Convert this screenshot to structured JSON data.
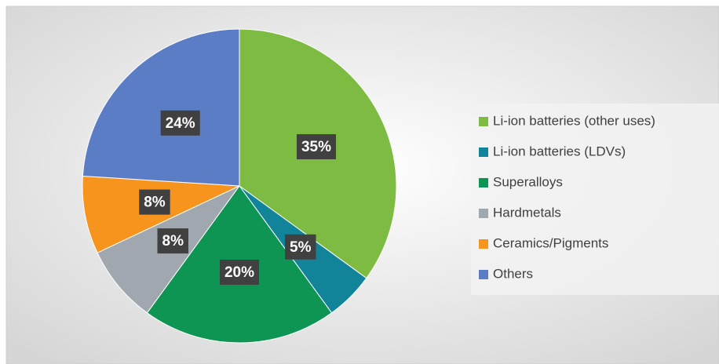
{
  "chart_data": {
    "type": "pie",
    "categories": [
      "Li-ion batteries (other uses)",
      "Li-ion batteries (LDVs)",
      "Superalloys",
      "Hardmetals",
      "Ceramics/Pigments",
      "Others"
    ],
    "values": [
      35,
      5,
      20,
      8,
      8,
      24
    ],
    "value_labels": [
      "35%",
      "5%",
      "20%",
      "8%",
      "8%",
      "24%"
    ],
    "colors": [
      "#7dbb42",
      "#12849a",
      "#0e9554",
      "#a0a7ae",
      "#f7941d",
      "#5a7dc6"
    ],
    "legend": "right"
  }
}
